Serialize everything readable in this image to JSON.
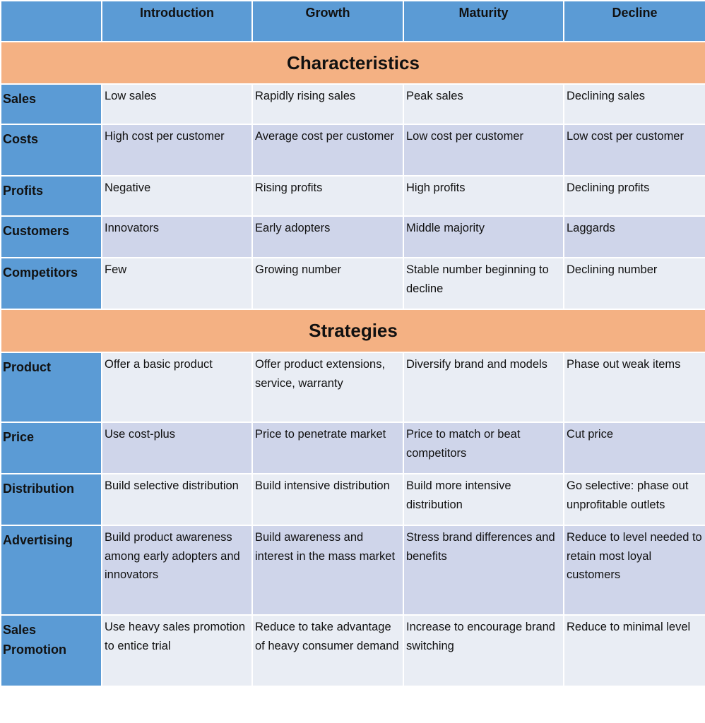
{
  "colors": {
    "header": "#5b9bd5",
    "section": "#f4b183",
    "row_light": "#e9edf4",
    "row_dark": "#cfd5ea"
  },
  "header": {
    "corner": "",
    "columns": [
      "Introduction",
      "Growth",
      "Maturity",
      "Decline"
    ]
  },
  "sections": [
    {
      "title": "Characteristics",
      "rows": [
        {
          "label": "Sales",
          "cells": [
            "Low sales",
            "Rapidly rising sales",
            "Peak sales",
            "Declining sales"
          ]
        },
        {
          "label": "Costs",
          "cells": [
            "High cost per customer",
            "Average cost per customer",
            "Low cost per customer",
            "Low cost per customer"
          ]
        },
        {
          "label": "Profits",
          "cells": [
            "Negative",
            "Rising profits",
            "High profits",
            "Declining profits"
          ]
        },
        {
          "label": "Customers",
          "cells": [
            "Innovators",
            "Early adopters",
            "Middle majority",
            "Laggards"
          ]
        },
        {
          "label": "Competitors",
          "cells": [
            "Few",
            "Growing number",
            "Stable number beginning to decline",
            "Declining number"
          ]
        }
      ]
    },
    {
      "title": "Strategies",
      "rows": [
        {
          "label": "Product",
          "cells": [
            "Offer a basic product",
            "Offer product extensions, service, warranty",
            "Diversify brand and models",
            "Phase out weak items"
          ]
        },
        {
          "label": "Price",
          "cells": [
            "Use cost-plus",
            "Price to penetrate market",
            "Price to match or beat competitors",
            "Cut price"
          ]
        },
        {
          "label": "Distribution",
          "cells": [
            "Build selective distribution",
            "Build intensive distribution",
            "Build more intensive distribution",
            "Go selective: phase out unprofitable outlets"
          ]
        },
        {
          "label": "Advertising",
          "cells": [
            "Build product awareness among early adopters and innovators",
            "Build awareness and interest in the mass market",
            "Stress brand differences and benefits",
            "Reduce to level needed to retain most loyal customers"
          ]
        },
        {
          "label": "Sales Promotion",
          "cells": [
            "Use heavy sales promotion to entice trial",
            "Reduce to take advantage of heavy consumer demand",
            "Increase to encourage brand switching",
            "Reduce to minimal level"
          ]
        }
      ]
    }
  ]
}
